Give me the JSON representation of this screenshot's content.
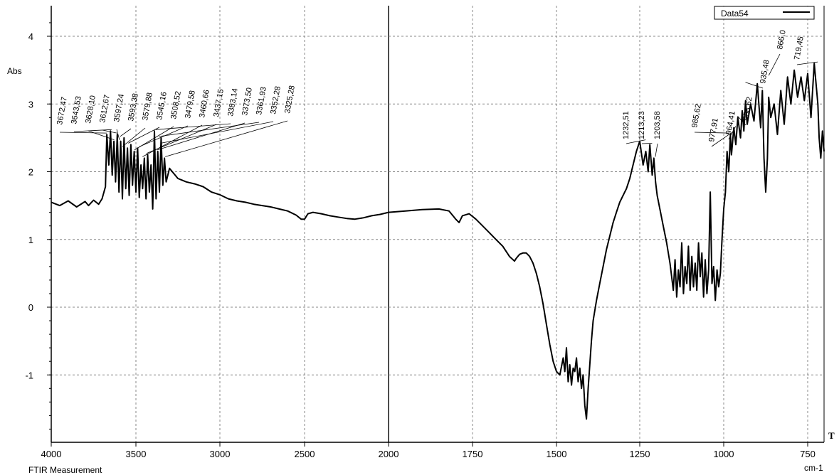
{
  "chart_data": {
    "type": "line",
    "title": "",
    "footer_left": "FTIR Measurement",
    "ylabel": "Abs",
    "xlabel": "cm-1",
    "corner_mark": "T",
    "legend": {
      "label": "Data54",
      "position": "top-right"
    },
    "x_reversed": true,
    "xlim": [
      4000,
      700
    ],
    "ylim": [
      -2.0,
      4.4
    ],
    "grid": true,
    "x_ticks": [
      4000,
      3500,
      3000,
      2500,
      2000,
      1750,
      1500,
      1250,
      1000,
      750
    ],
    "x_tick_labels": [
      "4000",
      "3500",
      "3000",
      "2500",
      "2000",
      "1750",
      "1500",
      "1250",
      "1000",
      "750"
    ],
    "y_ticks": [
      4,
      3,
      2,
      1,
      0,
      -1
    ],
    "y_tick_labels": [
      "4",
      "3",
      "2",
      "1",
      "0",
      "-1"
    ],
    "series": [
      {
        "name": "Data54",
        "x": [
          4000,
          3950,
          3900,
          3850,
          3800,
          3780,
          3750,
          3720,
          3700,
          3680,
          3672,
          3660,
          3650,
          3640,
          3630,
          3620,
          3610,
          3600,
          3590,
          3580,
          3570,
          3560,
          3550,
          3540,
          3530,
          3520,
          3510,
          3500,
          3490,
          3480,
          3470,
          3460,
          3450,
          3440,
          3430,
          3420,
          3410,
          3400,
          3390,
          3380,
          3370,
          3360,
          3350,
          3340,
          3330,
          3320,
          3300,
          3250,
          3200,
          3150,
          3100,
          3050,
          3000,
          2950,
          2900,
          2850,
          2800,
          2750,
          2700,
          2650,
          2600,
          2550,
          2520,
          2500,
          2480,
          2450,
          2400,
          2350,
          2300,
          2250,
          2200,
          2150,
          2100,
          2050,
          2000,
          1950,
          1900,
          1850,
          1820,
          1800,
          1790,
          1780,
          1760,
          1740,
          1720,
          1700,
          1680,
          1660,
          1640,
          1625,
          1620,
          1610,
          1600,
          1590,
          1580,
          1570,
          1560,
          1550,
          1540,
          1530,
          1520,
          1510,
          1500,
          1490,
          1480,
          1475,
          1470,
          1465,
          1460,
          1455,
          1450,
          1445,
          1440,
          1435,
          1430,
          1425,
          1420,
          1415,
          1410,
          1405,
          1400,
          1395,
          1390,
          1380,
          1370,
          1360,
          1350,
          1340,
          1330,
          1320,
          1310,
          1300,
          1290,
          1280,
          1270,
          1260,
          1250,
          1240,
          1232,
          1225,
          1220,
          1213,
          1208,
          1203,
          1198,
          1190,
          1180,
          1170,
          1160,
          1150,
          1145,
          1140,
          1135,
          1130,
          1125,
          1120,
          1115,
          1110,
          1105,
          1100,
          1095,
          1090,
          1085,
          1080,
          1075,
          1070,
          1065,
          1060,
          1055,
          1050,
          1045,
          1040,
          1035,
          1030,
          1025,
          1020,
          1015,
          1010,
          1005,
          1000,
          995,
          990,
          985,
          980,
          977,
          970,
          964,
          958,
          950,
          945,
          940,
          935,
          930,
          920,
          910,
          900,
          890,
          885,
          880,
          875,
          870,
          866,
          860,
          850,
          840,
          830,
          820,
          810,
          800,
          790,
          780,
          770,
          760,
          750,
          740,
          730,
          719,
          715,
          710,
          705,
          700
        ],
        "values": [
          1.55,
          1.5,
          1.57,
          1.48,
          1.56,
          1.5,
          1.58,
          1.52,
          1.6,
          1.78,
          2.55,
          2.1,
          2.6,
          1.95,
          2.45,
          1.85,
          2.55,
          1.7,
          2.45,
          1.6,
          2.5,
          1.75,
          2.35,
          1.65,
          2.4,
          1.8,
          2.3,
          1.7,
          2.35,
          1.62,
          2.1,
          1.75,
          2.2,
          1.6,
          2.25,
          1.7,
          2.1,
          1.45,
          2.6,
          1.6,
          2.3,
          1.7,
          2.5,
          1.8,
          2.2,
          1.85,
          2.05,
          1.9,
          1.85,
          1.82,
          1.78,
          1.7,
          1.66,
          1.6,
          1.57,
          1.55,
          1.52,
          1.5,
          1.48,
          1.45,
          1.42,
          1.36,
          1.3,
          1.3,
          1.38,
          1.4,
          1.38,
          1.35,
          1.33,
          1.31,
          1.3,
          1.32,
          1.35,
          1.37,
          1.4,
          1.42,
          1.44,
          1.45,
          1.42,
          1.3,
          1.25,
          1.35,
          1.38,
          1.3,
          1.2,
          1.1,
          1.0,
          0.9,
          0.75,
          0.68,
          0.72,
          0.78,
          0.8,
          0.8,
          0.75,
          0.65,
          0.5,
          0.3,
          0.05,
          -0.25,
          -0.55,
          -0.8,
          -0.95,
          -1.0,
          -0.75,
          -0.95,
          -0.6,
          -1.1,
          -0.85,
          -1.15,
          -0.9,
          -0.95,
          -0.75,
          -1.1,
          -0.9,
          -1.2,
          -1.0,
          -1.45,
          -1.65,
          -1.2,
          -0.85,
          -0.5,
          -0.2,
          0.1,
          0.35,
          0.6,
          0.85,
          1.05,
          1.25,
          1.4,
          1.55,
          1.65,
          1.75,
          1.9,
          2.1,
          2.3,
          2.45,
          2.1,
          2.3,
          2.0,
          2.4,
          1.95,
          2.2,
          1.85,
          1.65,
          1.45,
          1.2,
          0.95,
          0.65,
          0.25,
          0.7,
          0.15,
          0.55,
          0.3,
          0.95,
          0.2,
          0.6,
          0.35,
          0.9,
          0.25,
          0.75,
          0.3,
          0.65,
          0.25,
          0.95,
          0.45,
          0.8,
          0.15,
          0.7,
          0.2,
          0.55,
          1.7,
          0.35,
          0.6,
          0.1,
          0.55,
          0.3,
          0.5,
          1.0,
          1.45,
          1.7,
          2.3,
          2.0,
          2.55,
          2.25,
          2.65,
          2.4,
          2.8,
          2.5,
          2.9,
          2.6,
          3.05,
          2.7,
          3.0,
          2.75,
          3.3,
          2.65,
          3.2,
          2.2,
          1.7,
          2.2,
          3.1,
          2.8,
          3.0,
          2.55,
          3.2,
          2.7,
          3.4,
          3.0,
          3.5,
          3.1,
          3.4,
          3.05,
          3.45,
          2.8,
          3.6,
          3.0,
          2.5,
          2.2,
          2.6,
          2.3
        ]
      }
    ],
    "peak_labels": [
      {
        "x": 3672.47,
        "text": "3672,47",
        "y": 2.55
      },
      {
        "x": 3643.53,
        "text": "3643,53",
        "y": 2.6
      },
      {
        "x": 3628.1,
        "text": "3628,10",
        "y": 2.45
      },
      {
        "x": 3612.67,
        "text": "3612,67",
        "y": 2.55
      },
      {
        "x": 3597.24,
        "text": "3597,24",
        "y": 2.45
      },
      {
        "x": 3593.38,
        "text": "3593,38",
        "y": 2.5
      },
      {
        "x": 3579.88,
        "text": "3579,88",
        "y": 2.35
      },
      {
        "x": 3545.16,
        "text": "3545,16",
        "y": 2.4
      },
      {
        "x": 3508.52,
        "text": "3508,52",
        "y": 2.3
      },
      {
        "x": 3479.58,
        "text": "3479,58",
        "y": 2.35
      },
      {
        "x": 3460.66,
        "text": "3460,66",
        "y": 2.2
      },
      {
        "x": 3437.15,
        "text": "3437,15",
        "y": 2.25
      },
      {
        "x": 3383.14,
        "text": "3383,14",
        "y": 2.6
      },
      {
        "x": 3373.5,
        "text": "3373,50",
        "y": 2.3
      },
      {
        "x": 3361.93,
        "text": "3361,93",
        "y": 2.5
      },
      {
        "x": 3352.28,
        "text": "3352,28",
        "y": 2.4
      },
      {
        "x": 3325.28,
        "text": "3325,28",
        "y": 2.2
      },
      {
        "x": 1232.51,
        "text": "1232,51",
        "y": 2.45
      },
      {
        "x": 1213.23,
        "text": "1213,23",
        "y": 2.4
      },
      {
        "x": 1203.58,
        "text": "1203,58",
        "y": 2.2
      },
      {
        "x": 985.62,
        "text": "985,62",
        "y": 2.55
      },
      {
        "x": 977.91,
        "text": "977,91",
        "y": 2.55
      },
      {
        "x": 964.41,
        "text": "964,41",
        "y": 2.65
      },
      {
        "x": 958.62,
        "text": "958,62",
        "y": 2.8
      },
      {
        "x": 935.48,
        "text": "935,48",
        "y": 3.3
      },
      {
        "x": 866.0,
        "text": "866,0",
        "y": 3.4
      },
      {
        "x": 719.45,
        "text": "719,45",
        "y": 3.6
      }
    ]
  }
}
